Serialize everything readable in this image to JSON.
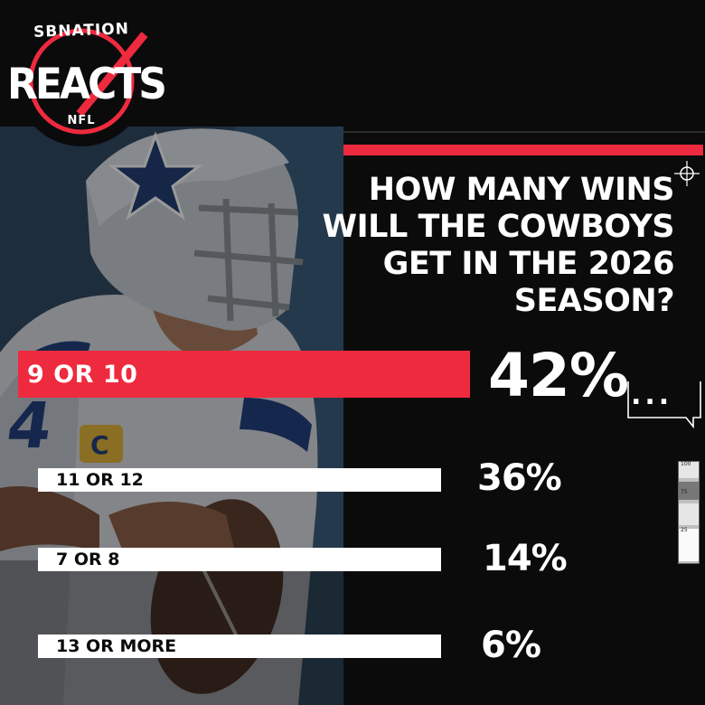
{
  "logo": {
    "top_text": "SBNATION",
    "main_text": "REACTS",
    "bottom_text": "NFL"
  },
  "question": "HOW MANY WINS WILL THE COWBOYS GET IN THE 2026 SEASON?",
  "results": [
    {
      "label": "9 OR 10",
      "percent": "42%",
      "highlighted": true
    },
    {
      "label": "11 OR 12",
      "percent": "36%",
      "highlighted": false
    },
    {
      "label": "7 OR 8",
      "percent": "14%",
      "highlighted": false
    },
    {
      "label": "13 OR MORE",
      "percent": "6%",
      "highlighted": false
    }
  ],
  "chat_bubble": "...",
  "meter": {
    "labels": [
      "100",
      "75",
      "25"
    ]
  },
  "colors": {
    "accent": "#ee2a3e",
    "background": "#0b0b0c",
    "bar_light": "#ffffff"
  },
  "icons": [
    "crosshair-icon",
    "chat-bubble-icon",
    "star-logo-icon",
    "check-mark-icon"
  ]
}
